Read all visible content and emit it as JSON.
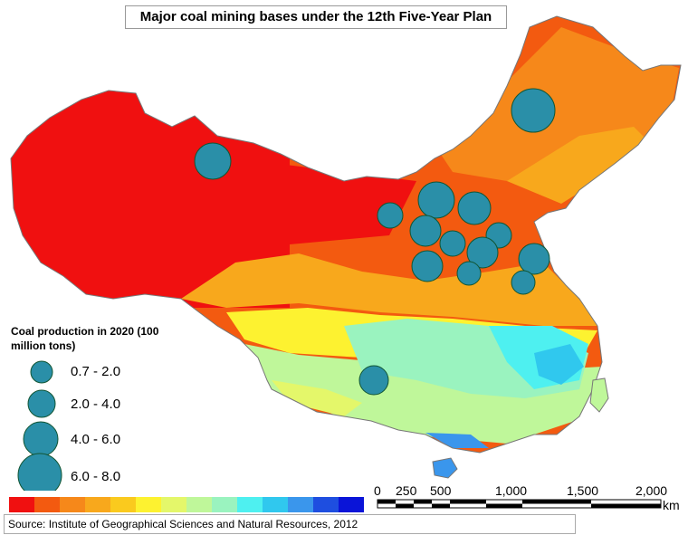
{
  "title": "Major coal mining bases under the 12th Five-Year Plan",
  "legend": {
    "title": "Coal production in 2020  (100 million tons)",
    "classes": [
      {
        "label": "0.7 - 2.0"
      },
      {
        "label": "2.0 - 4.0"
      },
      {
        "label": "4.0 - 6.0"
      },
      {
        "label": "6.0 - 8.0"
      }
    ],
    "bubble_color": "#2a8fa8"
  },
  "color_ramp": [
    "#f01010",
    "#f35a10",
    "#f6881a",
    "#f8a81c",
    "#faca1e",
    "#fdf230",
    "#e4f76a",
    "#bff79a",
    "#9af3bf",
    "#4ef0f0",
    "#30c8ee",
    "#3a96ec",
    "#1e4ee0",
    "#0a14d8"
  ],
  "scale_bar": {
    "labels": [
      "0",
      "250",
      "500",
      "1,000",
      "1,500",
      "2,000"
    ],
    "unit": "km"
  },
  "source": "Source: Institute of Geographical Sciences and Natural Resources, 2012"
}
